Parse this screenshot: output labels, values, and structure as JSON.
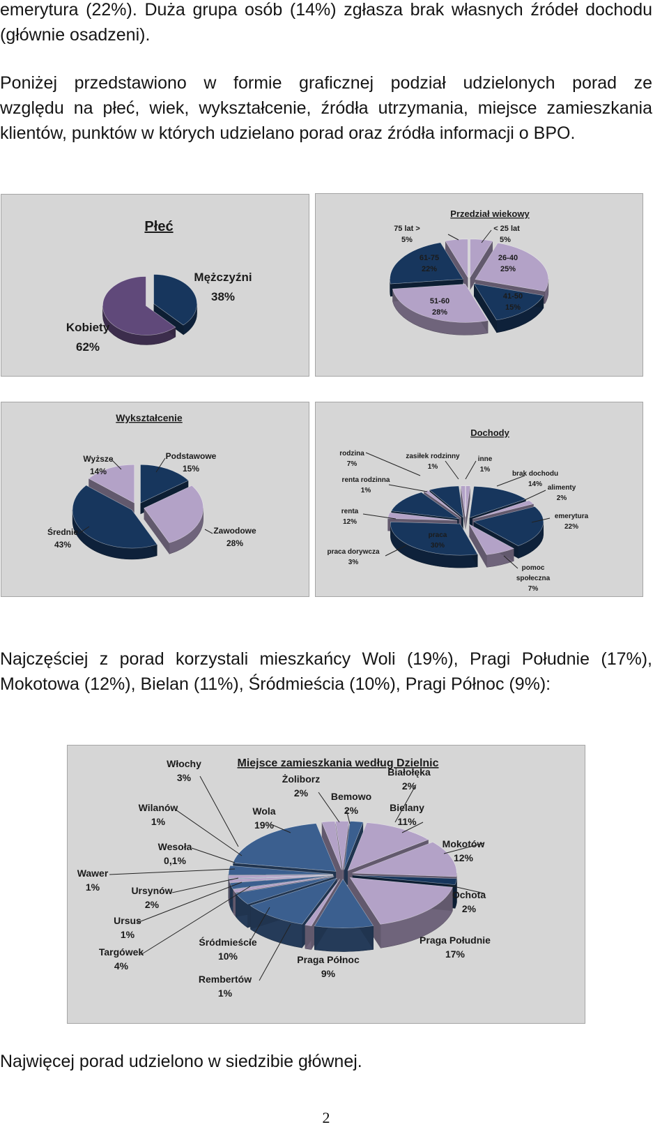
{
  "text": {
    "para1_line1": "emerytura (22%). Duża grupa osób (14%) zgłasza brak własnych źródeł dochodu",
    "para1_line2": "(głównie osadzeni).",
    "para2_line1": "Poniżej przedstawiono w formie graficznej podział udzielonych porad ze",
    "para2_line2": "względu na płeć, wiek, wykształcenie, źródła utrzymania, miejsce zamieszkania",
    "para2_line3": "klientów, punktów w których udzielano porad oraz źródła informacji o BPO.",
    "para3_line1": "Najczęściej z porad korzystali mieszkańcy Woli (19%), Pragi Południe (17%),",
    "para3_line2": "Mokotowa (12%), Bielan (11%), Śródmieścia (10%), Pragi Północ (9%):",
    "para4_line1": "Najwięcej porad udzielono w siedzibie głównej.",
    "page_number": "2"
  },
  "colors": {
    "dark": "#1f3864",
    "navy": "#17365d",
    "lavender": "#b3a2c7",
    "purple": "#60497a",
    "blue": "#3b5f8f"
  },
  "chart_data": [
    {
      "type": "pie",
      "title": "Płeć",
      "categories": [
        "Mężczyźni",
        "Kobiety"
      ],
      "values": [
        38,
        62
      ],
      "labels": [
        "Mężczyźni",
        "38%",
        "Kobiety",
        "62%"
      ]
    },
    {
      "type": "pie",
      "title": "Przedział wiekowy",
      "categories": [
        "< 25 lat",
        "26-40",
        "41-50",
        "51-60",
        "61-75",
        "75 lat >"
      ],
      "values": [
        5,
        25,
        15,
        28,
        22,
        5
      ],
      "labels": [
        "< 25 lat",
        "5%",
        "26-40",
        "25%",
        "41-50",
        "15%",
        "51-60",
        "28%",
        "61-75",
        "22%",
        "75 lat >",
        "5%"
      ]
    },
    {
      "type": "pie",
      "title": "Wykształcenie",
      "categories": [
        "Podstawowe",
        "Zawodowe",
        "Średnie",
        "Wyższe"
      ],
      "values": [
        15,
        28,
        43,
        14
      ],
      "labels": [
        "Podstawowe",
        "15%",
        "Zawodowe",
        "28%",
        "Średnie",
        "43%",
        "Wyższe",
        "14%"
      ]
    },
    {
      "type": "pie",
      "title": "Dochody",
      "categories": [
        "inne",
        "brak dochodu",
        "alimenty",
        "emerytura",
        "pomoc społeczna",
        "praca",
        "praca dorywcza",
        "renta",
        "renta rodzinna",
        "rodzina",
        "zasiłek rodzinny"
      ],
      "values": [
        1,
        14,
        2,
        22,
        7,
        30,
        3,
        12,
        1,
        7,
        1
      ],
      "labels": [
        "rodzina",
        "7%",
        "zasiłek rodzinny",
        "1%",
        "inne",
        "1%",
        "brak dochodu",
        "14%",
        "alimenty",
        "2%",
        "renta rodzinna",
        "1%",
        "renta",
        "12%",
        "emerytura",
        "22%",
        "praca",
        "30%",
        "praca dorywcza",
        "3%",
        "pomoc",
        "społeczna",
        "7%"
      ]
    },
    {
      "type": "pie",
      "title": "Miejsce zamieszkania według Dzielnic",
      "categories": [
        "Białołęka",
        "Bemowo",
        "Bielany",
        "Mokotów",
        "Ochota",
        "Praga Południe",
        "Praga Północ",
        "Rembertów",
        "Śródmieście",
        "Targówek",
        "Ursus",
        "Ursynów",
        "Wawer",
        "Wesoła",
        "Wilanów",
        "Włochy",
        "Wola",
        "Żoliborz"
      ],
      "values": [
        2,
        2,
        11,
        12,
        2,
        17,
        9,
        1,
        10,
        4,
        1,
        2,
        1,
        0.1,
        1,
        3,
        19,
        2
      ],
      "labels": [
        "Włochy",
        "3%",
        "Żoliborz",
        "2%",
        "Białołęka",
        "2%",
        "Bemowo",
        "2%",
        "Wilanów",
        "1%",
        "Wola",
        "19%",
        "Bielany",
        "11%",
        "Wesoła",
        "0,1%",
        "Mokotów",
        "12%",
        "Wawer",
        "1%",
        "Ursynów",
        "2%",
        "Ochota",
        "2%",
        "Ursus",
        "1%",
        "Targówek",
        "4%",
        "Śródmieście",
        "10%",
        "Praga Południe",
        "17%",
        "Praga Północ",
        "9%",
        "Rembertów",
        "1%"
      ]
    }
  ]
}
